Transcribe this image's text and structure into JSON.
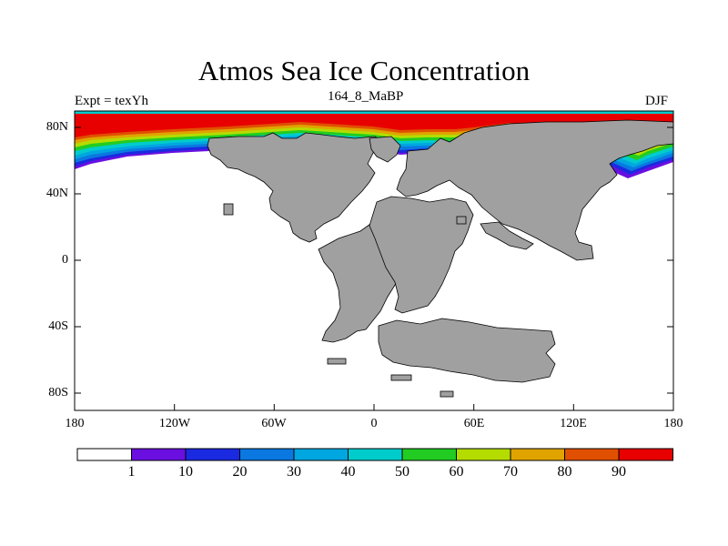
{
  "title": "Atmos Sea Ice Concentration",
  "subtitle_left": "Expt = texYh",
  "subtitle_center": "164_8_MaBP",
  "subtitle_right": "DJF",
  "map": {
    "projection": "cylindrical equidistant",
    "lon_range": [
      -180,
      180
    ],
    "lat_range": [
      -90,
      90
    ],
    "x_tick_labels": [
      "180",
      "120W",
      "60W",
      "0",
      "60E",
      "120E",
      "180"
    ],
    "y_tick_labels": [
      "80N",
      "40N",
      "0",
      "40S",
      "80S"
    ],
    "land_color": "#a0a0a0",
    "ocean_color": "#ffffff",
    "ice_max_color": "#e80000"
  },
  "colorbar": {
    "levels": [
      "1",
      "10",
      "20",
      "30",
      "40",
      "50",
      "60",
      "70",
      "80",
      "90"
    ],
    "colors": [
      "#ffffff",
      "#6a0fe0",
      "#1a2ae0",
      "#0a78e0",
      "#00a6e0",
      "#00cccc",
      "#22cc22",
      "#b4dc00",
      "#e0a400",
      "#e05000",
      "#e80000"
    ]
  }
}
